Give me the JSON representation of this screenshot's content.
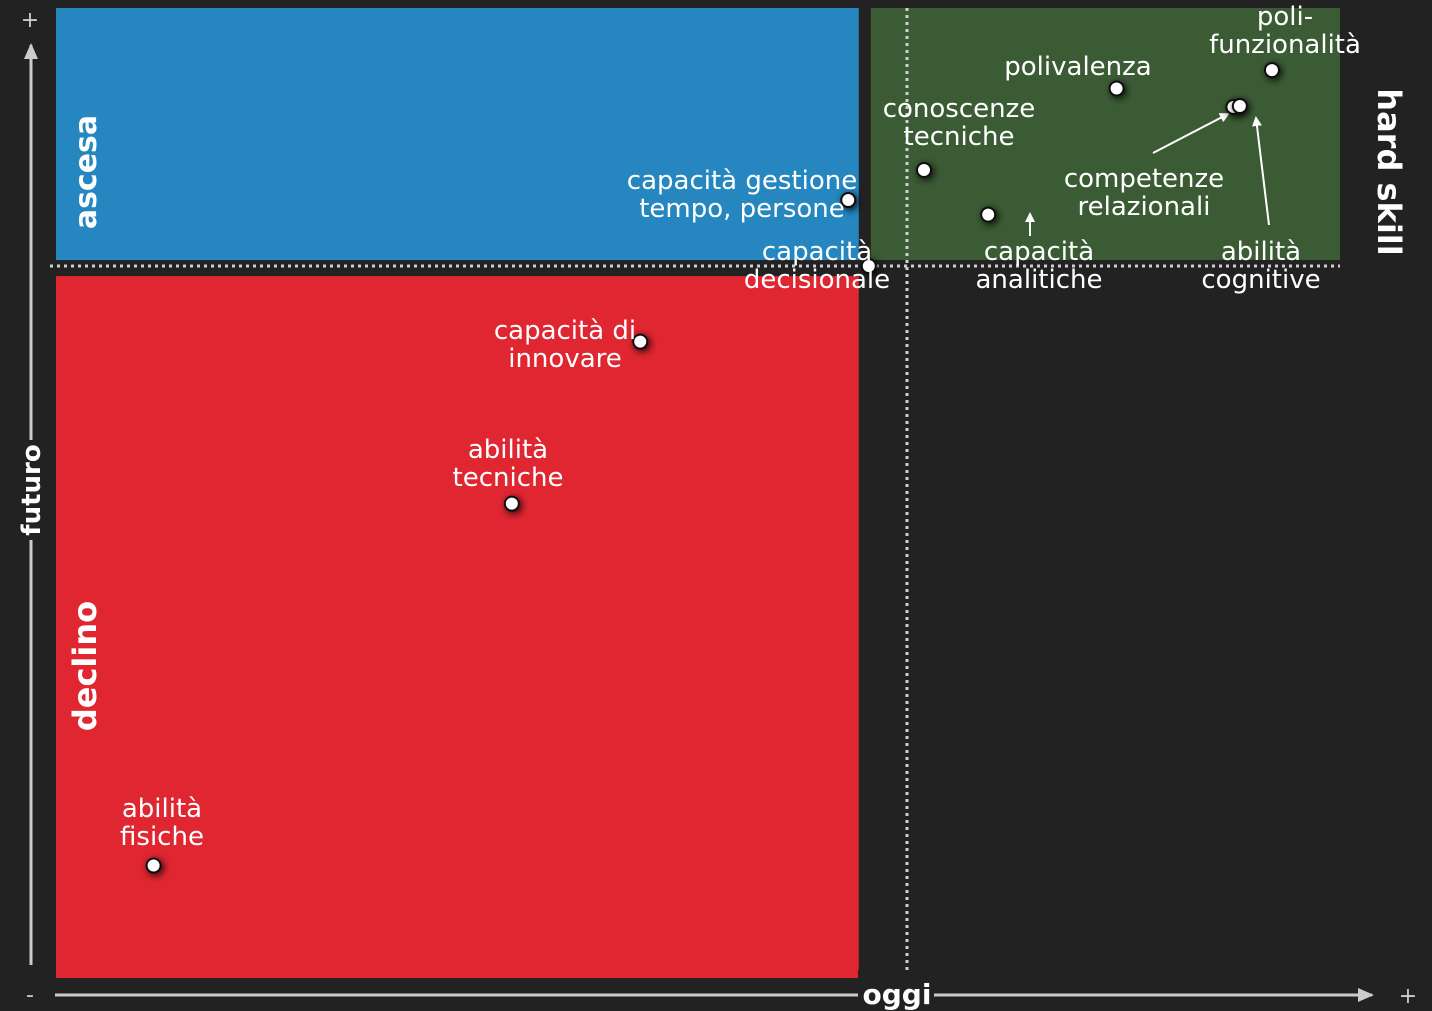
{
  "chart_data": {
    "type": "scatter",
    "x_axis": {
      "label": "oggi",
      "min_label": "-",
      "max_label": "+"
    },
    "y_axis": {
      "label": "futuro",
      "min_label": "-",
      "max_label": "+"
    },
    "xlim": [
      0,
      100
    ],
    "ylim": [
      0,
      100
    ],
    "divider": {
      "x": 63.3,
      "y": 73.6
    },
    "regions": [
      {
        "name": "ascesa",
        "color": "#2586c0"
      },
      {
        "name": "declino",
        "color": "#e02630"
      },
      {
        "name": "hard skill",
        "color": "#3b5b35"
      }
    ],
    "points": [
      {
        "label": [
          "poli-",
          "funzionalità"
        ],
        "x": 94.7,
        "y": 93.6
      },
      {
        "label": [
          "polivalenza"
        ],
        "x": 82.6,
        "y": 91.7
      },
      {
        "label": [
          "conoscenze",
          "tecniche"
        ],
        "x": 67.6,
        "y": 83.3
      },
      {
        "label": [
          "capacità gestione",
          "tempo, persone"
        ],
        "x": 61.7,
        "y": 80.2
      },
      {
        "label": [
          "competenze",
          "relazionali"
        ],
        "x": 91.7,
        "y": 89.8
      },
      {
        "label": [
          "abilità",
          "cognitive"
        ],
        "x": 92.2,
        "y": 89.9
      },
      {
        "label": [
          "capacità",
          "analitiche"
        ],
        "x": 72.6,
        "y": 78.7
      },
      {
        "label": [
          "capacità",
          "decisionale"
        ],
        "x": 63.3,
        "y": 73.4
      },
      {
        "label": [
          "capacità di",
          "innovare"
        ],
        "x": 45.5,
        "y": 65.6
      },
      {
        "label": [
          "abilità",
          "tecniche"
        ],
        "x": 35.5,
        "y": 48.9
      },
      {
        "label": [
          "abilità",
          "fisiche"
        ],
        "x": 7.6,
        "y": 11.6
      }
    ]
  }
}
